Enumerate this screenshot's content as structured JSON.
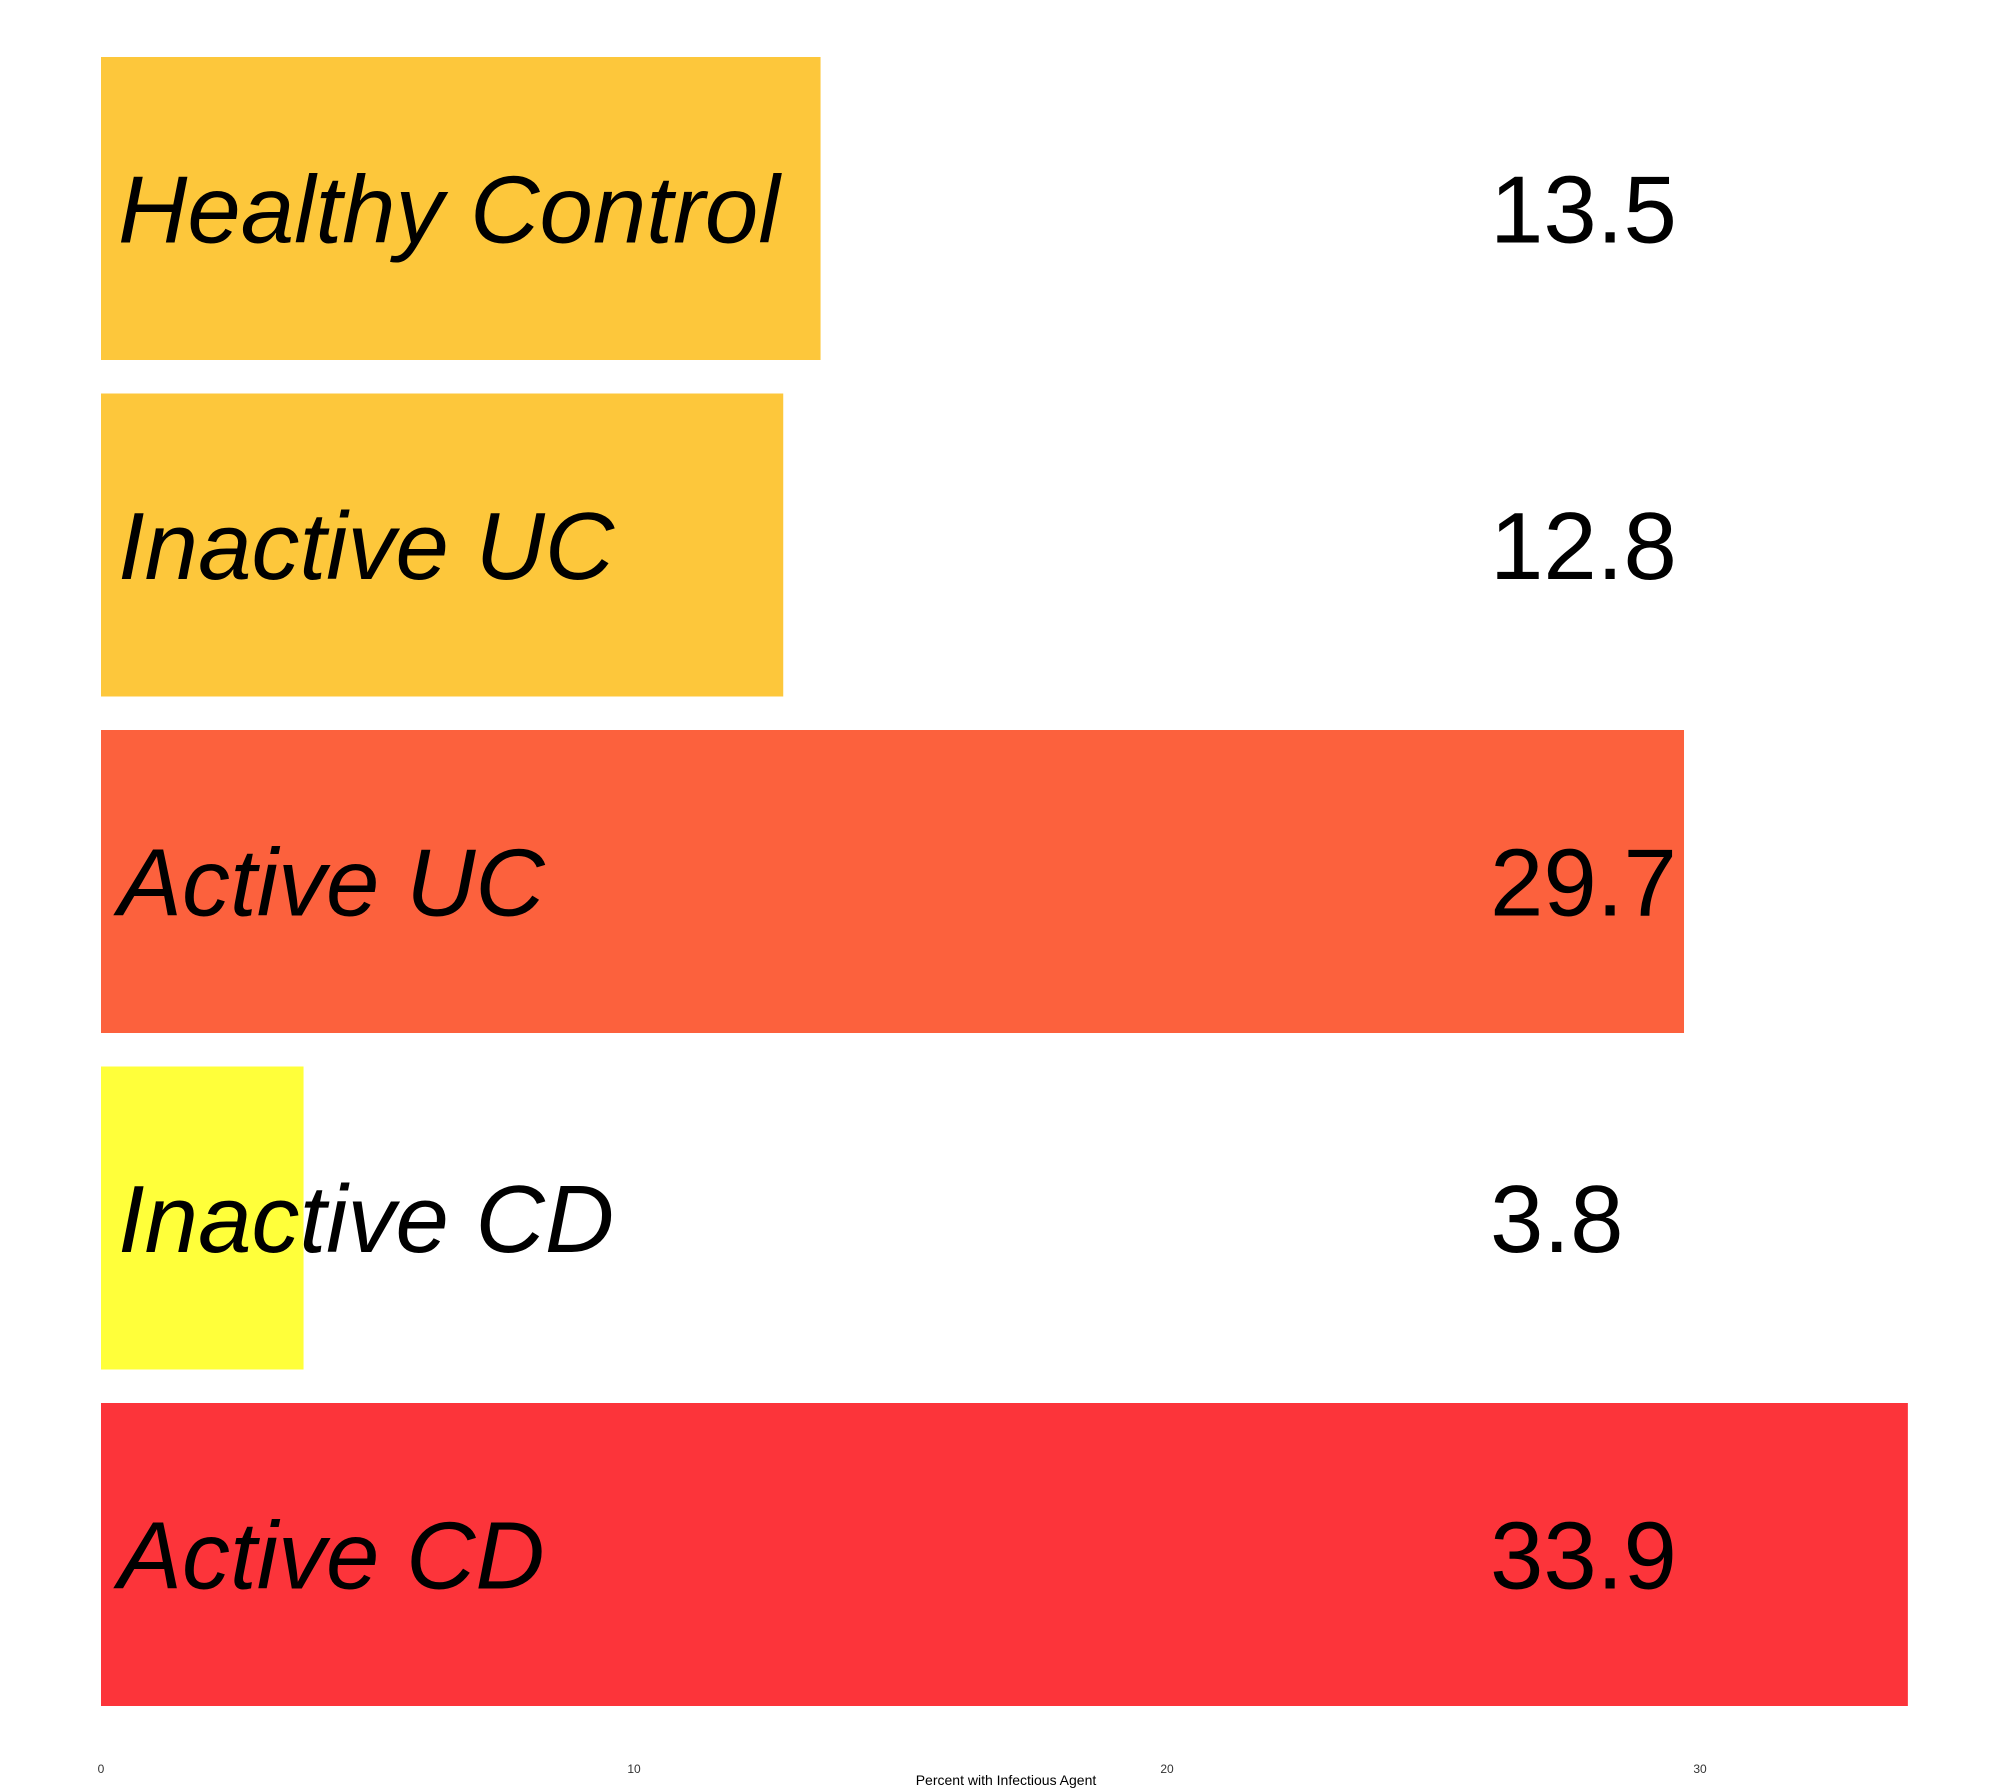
{
  "chart_data": {
    "type": "bar",
    "orientation": "horizontal",
    "title": "",
    "xlabel": "Percent with Infectious Agent",
    "ylabel": "",
    "xlim": [
      0,
      34
    ],
    "x_ticks": [
      0,
      10,
      20,
      30
    ],
    "grid": false,
    "categories": [
      "Healthy Control",
      "Inactive UC",
      "Active UC",
      "Inactive CD",
      "Active CD"
    ],
    "values": [
      13.5,
      12.8,
      29.7,
      3.8,
      33.9
    ],
    "value_labels": [
      "13.5",
      "12.8",
      "29.7",
      "3.8",
      "33.9"
    ],
    "colors": [
      "#FDC73B",
      "#FDC73B",
      "#FC613D",
      "#FFFF3A",
      "#FC343A"
    ]
  }
}
